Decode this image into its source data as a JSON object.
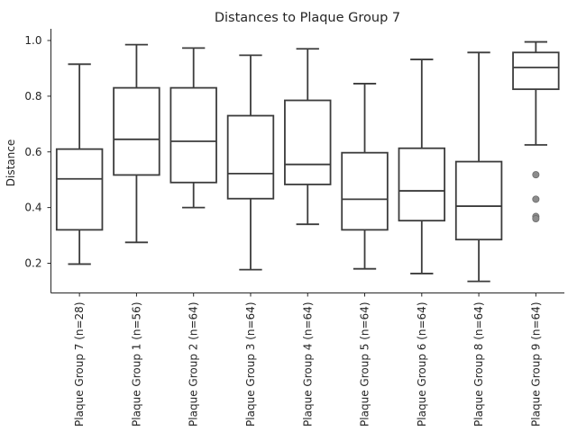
{
  "chart_data": {
    "type": "box",
    "title": "Distances to Plaque Group 7",
    "xlabel": "",
    "ylabel": "Distance",
    "ylim": [
      0.09,
      1.04
    ],
    "yticks": [
      "0.2",
      "0.4",
      "0.6",
      "0.8",
      "1.0"
    ],
    "ytick_values": [
      0.2,
      0.4,
      0.6,
      0.8,
      1.0
    ],
    "grid": false,
    "categories": [
      "Plaque Group 7 (n=28)",
      "Plaque Group 1 (n=56)",
      "Plaque Group 2 (n=64)",
      "Plaque Group 3 (n=64)",
      "Plaque Group 4 (n=64)",
      "Plaque Group 5 (n=64)",
      "Plaque Group 6 (n=64)",
      "Plaque Group 8 (n=64)",
      "Plaque Group 9 (n=64)"
    ],
    "boxes": [
      {
        "whislo": 0.197,
        "q1": 0.32,
        "med": 0.503,
        "q3": 0.61,
        "whishi": 0.915,
        "fliers": []
      },
      {
        "whislo": 0.275,
        "q1": 0.517,
        "med": 0.645,
        "q3": 0.83,
        "whishi": 0.985,
        "fliers": []
      },
      {
        "whislo": 0.4,
        "q1": 0.49,
        "med": 0.638,
        "q3": 0.83,
        "whishi": 0.973,
        "fliers": []
      },
      {
        "whislo": 0.177,
        "q1": 0.432,
        "med": 0.522,
        "q3": 0.73,
        "whishi": 0.947,
        "fliers": []
      },
      {
        "whislo": 0.34,
        "q1": 0.483,
        "med": 0.555,
        "q3": 0.785,
        "whishi": 0.97,
        "fliers": []
      },
      {
        "whislo": 0.18,
        "q1": 0.32,
        "med": 0.43,
        "q3": 0.597,
        "whishi": 0.845,
        "fliers": []
      },
      {
        "whislo": 0.163,
        "q1": 0.353,
        "med": 0.46,
        "q3": 0.613,
        "whishi": 0.932,
        "fliers": []
      },
      {
        "whislo": 0.135,
        "q1": 0.285,
        "med": 0.405,
        "q3": 0.565,
        "whishi": 0.957,
        "fliers": []
      },
      {
        "whislo": 0.625,
        "q1": 0.825,
        "med": 0.903,
        "q3": 0.957,
        "whishi": 0.995,
        "fliers": [
          0.518,
          0.43,
          0.368,
          0.36
        ]
      }
    ]
  }
}
